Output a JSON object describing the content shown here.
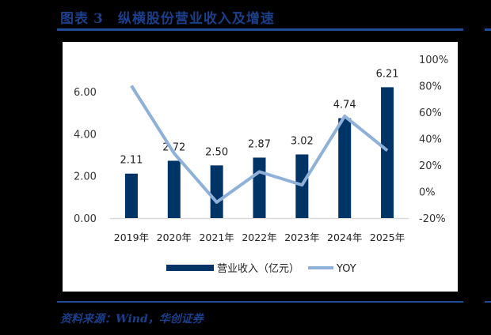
{
  "figure": {
    "label": "图表",
    "number": "3",
    "title": "纵横股份营业收入及增速",
    "source": "资料来源：Wind，华创证券"
  },
  "colors": {
    "bar": "#003366",
    "line": "#8eb0d9",
    "title": "#1b3f8b",
    "rule": "#1f4e96"
  },
  "chart_data": {
    "type": "bar+line",
    "title": "纵横股份营业收入及增速",
    "categories": [
      "2019年",
      "2020年",
      "2021年",
      "2022年",
      "2023年",
      "2024年",
      "2025年"
    ],
    "series": [
      {
        "name": "营业收入（亿元）",
        "type": "bar",
        "axis": "left",
        "values": [
          2.11,
          2.72,
          2.5,
          2.87,
          3.02,
          4.74,
          6.21
        ],
        "labels": [
          "2.11",
          "2.72",
          "2.50",
          "2.87",
          "3.02",
          "4.74",
          "6.21"
        ]
      },
      {
        "name": "YOY",
        "type": "line",
        "axis": "right",
        "values": [
          80,
          29,
          -8,
          15,
          5,
          57,
          31
        ]
      }
    ],
    "left_axis": {
      "ticks": [
        "0.00",
        "2.00",
        "4.00",
        "6.00"
      ],
      "ylim": [
        0,
        7.5
      ]
    },
    "right_axis": {
      "ticks": [
        "-20%",
        "0%",
        "20%",
        "40%",
        "60%",
        "80%",
        "100%"
      ],
      "ylim": [
        -20,
        100
      ]
    },
    "legend": {
      "position": "bottom",
      "entries": [
        "营业收入（亿元）",
        "YOY"
      ]
    },
    "grid": false
  }
}
